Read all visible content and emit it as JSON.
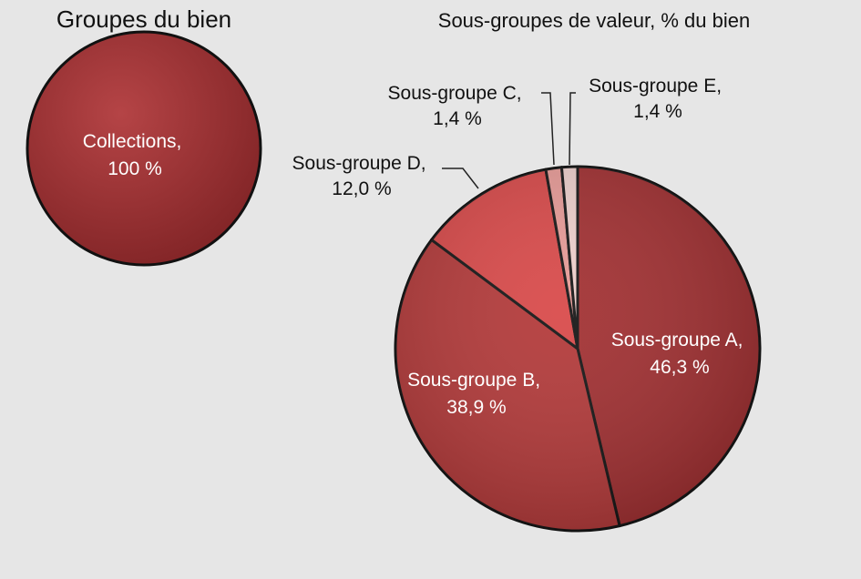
{
  "chart_data": [
    {
      "type": "pie",
      "title": "Groupes du bien",
      "slices": [
        {
          "label": "Collections,",
          "value_label": "100 %",
          "value": 100,
          "color": "#a3383a"
        }
      ]
    },
    {
      "type": "pie",
      "title": "Sous-groupes de valeur, % du bien",
      "slices": [
        {
          "label": "Sous-groupe A,",
          "value_label": "46,3 %",
          "value": 46.3,
          "color": "#a02c2e"
        },
        {
          "label": "Sous-groupe B,",
          "value_label": "38,9 %",
          "value": 38.9,
          "color": "#b23636"
        },
        {
          "label": "Sous-groupe D,",
          "value_label": "12,0 %",
          "value": 12.0,
          "color": "#d84646"
        },
        {
          "label": "Sous-groupe C,",
          "value_label": "1,4 %",
          "value": 1.4,
          "color": "#e89a96"
        },
        {
          "label": "Sous-groupe E,",
          "value_label": "1,4 %",
          "value": 1.4,
          "color": "#efd0cc"
        }
      ]
    }
  ]
}
